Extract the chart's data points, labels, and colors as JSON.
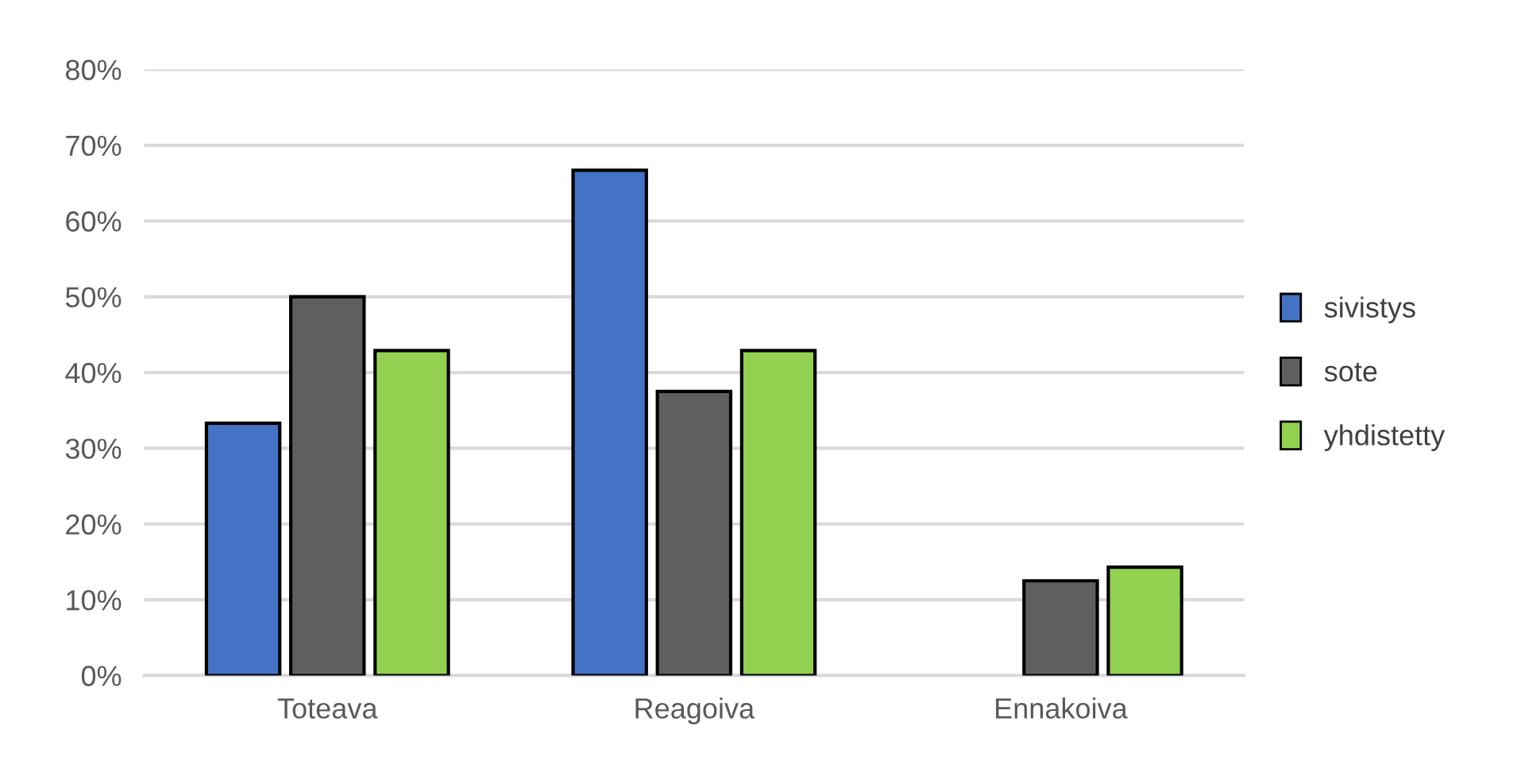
{
  "chart_data": {
    "type": "bar",
    "categories": [
      "Toteava",
      "Reagoiva",
      "Ennakoiva"
    ],
    "series": [
      {
        "name": "sivistys",
        "color": "#4472c4",
        "values": [
          33.3,
          66.7,
          null
        ]
      },
      {
        "name": "sote",
        "color": "#5f5f5f",
        "values": [
          50,
          37.5,
          12.5
        ]
      },
      {
        "name": "yhdistetty",
        "color": "#92d050",
        "values": [
          42.9,
          42.9,
          14.3
        ]
      }
    ],
    "ylim": [
      0,
      80
    ],
    "yticks": [
      {
        "value": 0,
        "label": "0%"
      },
      {
        "value": 10,
        "label": "10%"
      },
      {
        "value": 20,
        "label": "20%"
      },
      {
        "value": 30,
        "label": "30%"
      },
      {
        "value": 40,
        "label": "40%"
      },
      {
        "value": 50,
        "label": "50%"
      },
      {
        "value": 60,
        "label": "60%"
      },
      {
        "value": 70,
        "label": "70%"
      },
      {
        "value": 80,
        "label": "80%"
      }
    ],
    "grid": "y",
    "legend": "right"
  }
}
